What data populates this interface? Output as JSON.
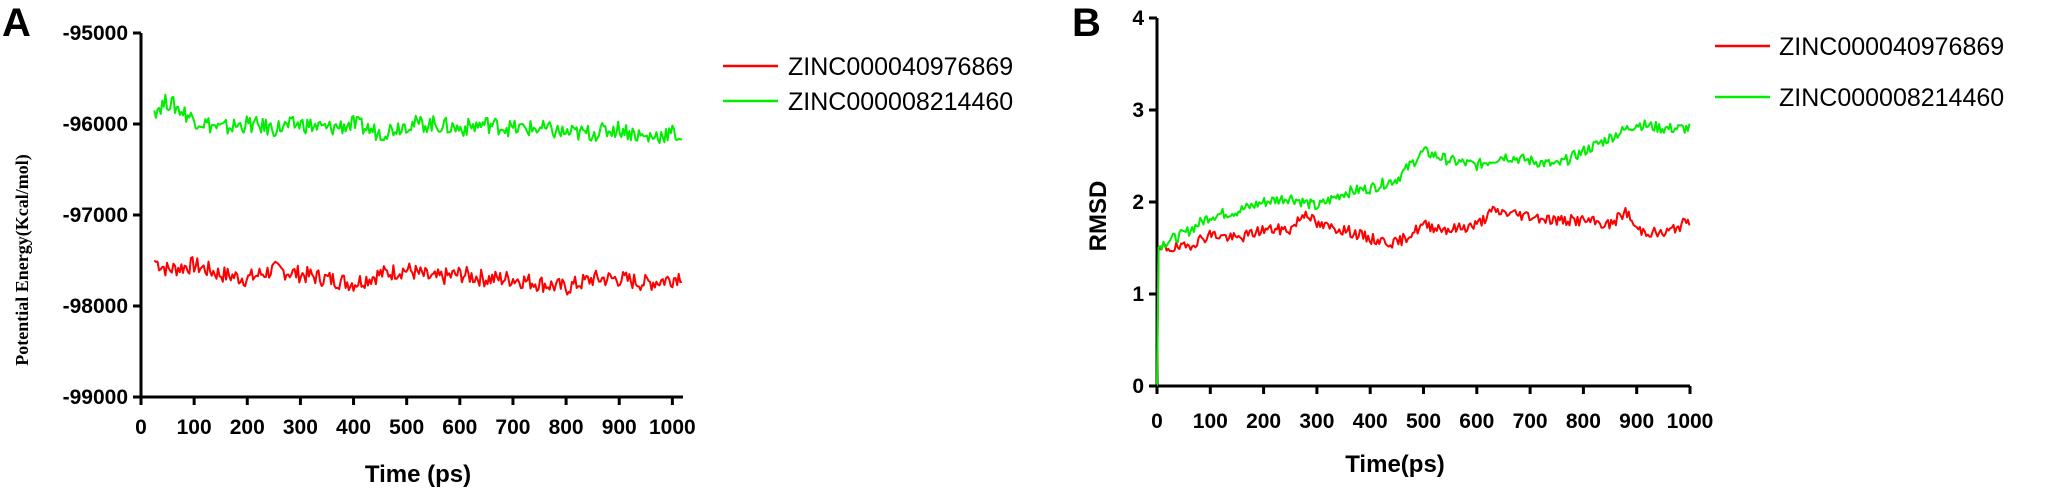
{
  "chart_data": [
    {
      "panel": "A",
      "type": "line",
      "xlabel": "Time (ps)",
      "ylabel": "Potential Energy(Kcal/mol)",
      "xlim": [
        0,
        1020
      ],
      "ylim": [
        -99000,
        -95000
      ],
      "x_ticks": [
        "0",
        "100",
        "200",
        "300",
        "400",
        "500",
        "600",
        "700",
        "800",
        "900",
        "1000"
      ],
      "y_ticks": [
        "-95000",
        "-96000",
        "-97000",
        "-98000",
        "-99000"
      ],
      "grid": false,
      "legend_position": "right",
      "series": [
        {
          "name": "ZINC000040976869",
          "color": "#ff0000",
          "x": [
            25,
            50,
            100,
            150,
            200,
            250,
            300,
            350,
            400,
            450,
            500,
            550,
            600,
            650,
            700,
            750,
            800,
            850,
            900,
            950,
            1000,
            1020
          ],
          "values": [
            -97500,
            -97600,
            -97550,
            -97650,
            -97700,
            -97600,
            -97650,
            -97700,
            -97750,
            -97650,
            -97600,
            -97700,
            -97650,
            -97700,
            -97700,
            -97750,
            -97800,
            -97700,
            -97700,
            -97750,
            -97700,
            -97650
          ]
        },
        {
          "name": "ZINC000008214460",
          "color": "#00ee00",
          "x": [
            25,
            50,
            100,
            150,
            200,
            250,
            300,
            350,
            400,
            450,
            500,
            550,
            600,
            650,
            700,
            750,
            800,
            850,
            900,
            950,
            1000,
            1020
          ],
          "values": [
            -95850,
            -95750,
            -95950,
            -96050,
            -96000,
            -96050,
            -96000,
            -96050,
            -96000,
            -96100,
            -96000,
            -96000,
            -96050,
            -96000,
            -96050,
            -96050,
            -96100,
            -96100,
            -96050,
            -96150,
            -96100,
            -96150
          ]
        }
      ]
    },
    {
      "panel": "B",
      "type": "line",
      "xlabel": "Time(ps)",
      "ylabel": "RMSD",
      "xlim": [
        0,
        1000
      ],
      "ylim": [
        0,
        4
      ],
      "x_ticks": [
        "0",
        "100",
        "200",
        "300",
        "400",
        "500",
        "600",
        "700",
        "800",
        "900",
        "1000"
      ],
      "y_ticks": [
        "0",
        "1",
        "2",
        "3",
        "4"
      ],
      "grid": false,
      "legend_position": "top-right",
      "series": [
        {
          "name": "ZINC000040976869",
          "color": "#ff0000",
          "x": [
            0,
            2,
            10,
            50,
            100,
            150,
            200,
            250,
            280,
            300,
            350,
            400,
            450,
            500,
            550,
            600,
            630,
            700,
            750,
            800,
            850,
            880,
            900,
            950,
            1000
          ],
          "values": [
            0,
            1.45,
            1.5,
            1.5,
            1.65,
            1.6,
            1.7,
            1.7,
            1.9,
            1.75,
            1.7,
            1.6,
            1.55,
            1.75,
            1.7,
            1.75,
            1.9,
            1.85,
            1.8,
            1.8,
            1.75,
            1.9,
            1.7,
            1.65,
            1.8
          ]
        },
        {
          "name": "ZINC000008214460",
          "color": "#00ee00",
          "x": [
            0,
            2,
            10,
            50,
            100,
            150,
            200,
            250,
            300,
            350,
            400,
            450,
            500,
            550,
            600,
            650,
            700,
            750,
            800,
            850,
            900,
            950,
            1000
          ],
          "values": [
            0,
            1.5,
            1.55,
            1.65,
            1.85,
            1.9,
            2.0,
            2.05,
            1.95,
            2.1,
            2.15,
            2.25,
            2.55,
            2.45,
            2.4,
            2.5,
            2.45,
            2.4,
            2.55,
            2.7,
            2.85,
            2.8,
            2.8
          ]
        }
      ]
    }
  ]
}
